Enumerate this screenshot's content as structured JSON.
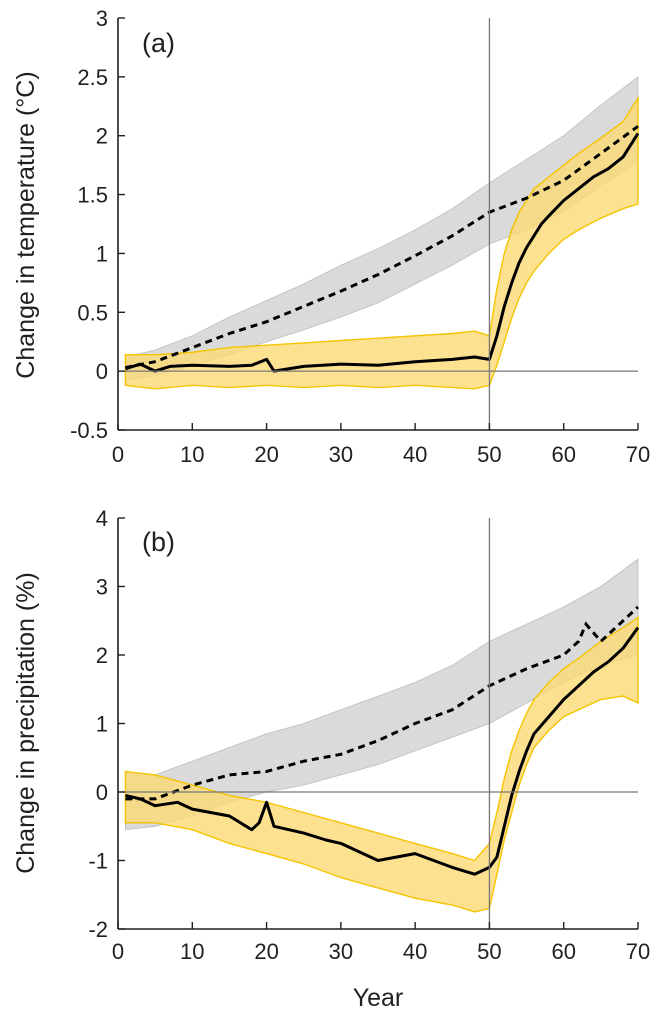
{
  "chart_data": [
    {
      "type": "line",
      "panel_label": "(a)",
      "xlabel": "",
      "ylabel": "Change in temperature (°C)",
      "xlim": [
        0,
        70
      ],
      "ylim": [
        -0.5,
        3
      ],
      "xticks": [
        "0",
        "10",
        "20",
        "30",
        "40",
        "50",
        "60",
        "70"
      ],
      "yticks": [
        "-0.5",
        "0",
        "0.5",
        "1",
        "1.5",
        "2",
        "2.5",
        "3"
      ],
      "xtick_values": [
        0,
        10,
        20,
        30,
        40,
        50,
        60,
        70
      ],
      "ytick_values": [
        -0.5,
        0,
        0.5,
        1,
        1.5,
        2,
        2.5,
        3
      ],
      "vline_x": 50,
      "hline_y": 0,
      "grid": false,
      "colors": {
        "gray_band": "#d4d4d4",
        "yellow_band": "#fbd976",
        "yellow_edge": "#f5c400",
        "line": "#000000"
      },
      "series": [
        {
          "style": "dashed",
          "x": [
            1,
            5,
            10,
            15,
            20,
            25,
            30,
            35,
            40,
            45,
            50,
            55,
            60,
            65,
            70
          ],
          "y": [
            0.03,
            0.08,
            0.2,
            0.32,
            0.42,
            0.55,
            0.68,
            0.82,
            0.98,
            1.15,
            1.35,
            1.47,
            1.62,
            1.85,
            2.08
          ]
        },
        {
          "style": "gray_band",
          "x": [
            1,
            5,
            10,
            15,
            20,
            25,
            30,
            35,
            40,
            45,
            50,
            55,
            60,
            65,
            70
          ],
          "lower": [
            -0.08,
            -0.04,
            0.05,
            0.14,
            0.25,
            0.35,
            0.46,
            0.58,
            0.74,
            0.9,
            1.08,
            1.2,
            1.36,
            1.58,
            1.78
          ],
          "upper": [
            0.12,
            0.18,
            0.3,
            0.46,
            0.6,
            0.74,
            0.9,
            1.04,
            1.2,
            1.38,
            1.6,
            1.8,
            2.0,
            2.26,
            2.5
          ]
        },
        {
          "style": "solid",
          "x": [
            1,
            3,
            5,
            7,
            10,
            15,
            18,
            20,
            21,
            25,
            30,
            35,
            40,
            45,
            48,
            50,
            51,
            52,
            53,
            54,
            55,
            56,
            57,
            58,
            60,
            62,
            64,
            66,
            68,
            70
          ],
          "y": [
            0.02,
            0.06,
            0.0,
            0.04,
            0.05,
            0.04,
            0.05,
            0.1,
            0.0,
            0.04,
            0.06,
            0.05,
            0.08,
            0.1,
            0.12,
            0.1,
            0.3,
            0.55,
            0.75,
            0.92,
            1.05,
            1.15,
            1.25,
            1.32,
            1.45,
            1.55,
            1.65,
            1.72,
            1.82,
            2.02
          ]
        },
        {
          "style": "yellow_band",
          "x": [
            1,
            5,
            10,
            15,
            20,
            25,
            30,
            35,
            40,
            45,
            48,
            50,
            51,
            52,
            53,
            54,
            55,
            56,
            58,
            60,
            62,
            65,
            68,
            70
          ],
          "lower": [
            -0.12,
            -0.15,
            -0.12,
            -0.14,
            -0.12,
            -0.14,
            -0.12,
            -0.14,
            -0.12,
            -0.14,
            -0.15,
            -0.12,
            0.05,
            0.25,
            0.45,
            0.62,
            0.75,
            0.85,
            1.0,
            1.12,
            1.2,
            1.3,
            1.38,
            1.42
          ],
          "upper": [
            0.14,
            0.14,
            0.16,
            0.2,
            0.22,
            0.24,
            0.26,
            0.28,
            0.3,
            0.32,
            0.34,
            0.3,
            0.7,
            1.0,
            1.2,
            1.35,
            1.45,
            1.55,
            1.65,
            1.75,
            1.85,
            1.98,
            2.12,
            2.32
          ]
        }
      ]
    },
    {
      "type": "line",
      "panel_label": "(b)",
      "xlabel": "Year",
      "ylabel": "Change in precipitation (%)",
      "xlim": [
        0,
        70
      ],
      "ylim": [
        -2,
        4
      ],
      "xticks": [
        "0",
        "10",
        "20",
        "30",
        "40",
        "50",
        "60",
        "70"
      ],
      "yticks": [
        "-2",
        "-1",
        "0",
        "1",
        "2",
        "3",
        "4"
      ],
      "xtick_values": [
        0,
        10,
        20,
        30,
        40,
        50,
        60,
        70
      ],
      "ytick_values": [
        -2,
        -1,
        0,
        1,
        2,
        3,
        4
      ],
      "vline_x": 50,
      "hline_y": 0,
      "grid": false,
      "colors": {
        "gray_band": "#d4d4d4",
        "yellow_band": "#fbd976",
        "yellow_edge": "#f5c400",
        "line": "#000000"
      },
      "series": [
        {
          "style": "dashed",
          "x": [
            1,
            5,
            10,
            15,
            20,
            25,
            30,
            35,
            40,
            45,
            50,
            55,
            60,
            62,
            63,
            65,
            70
          ],
          "y": [
            -0.1,
            -0.1,
            0.1,
            0.25,
            0.3,
            0.45,
            0.55,
            0.75,
            1.0,
            1.2,
            1.55,
            1.8,
            2.0,
            2.2,
            2.45,
            2.2,
            2.7
          ]
        },
        {
          "style": "gray_band",
          "x": [
            1,
            5,
            10,
            15,
            20,
            25,
            30,
            35,
            40,
            45,
            50,
            55,
            60,
            65,
            70
          ],
          "lower": [
            -0.55,
            -0.5,
            -0.35,
            -0.15,
            0.0,
            0.1,
            0.25,
            0.4,
            0.6,
            0.8,
            1.0,
            1.3,
            1.6,
            1.85,
            2.0
          ],
          "upper": [
            0.3,
            0.25,
            0.45,
            0.65,
            0.85,
            1.0,
            1.2,
            1.4,
            1.6,
            1.85,
            2.2,
            2.45,
            2.7,
            3.0,
            3.4
          ]
        },
        {
          "style": "solid",
          "x": [
            1,
            3,
            5,
            8,
            10,
            15,
            18,
            19,
            20,
            21,
            25,
            28,
            30,
            35,
            40,
            45,
            48,
            50,
            51,
            52,
            53,
            54,
            55,
            56,
            58,
            60,
            62,
            64,
            66,
            68,
            70
          ],
          "y": [
            -0.05,
            -0.1,
            -0.2,
            -0.15,
            -0.25,
            -0.35,
            -0.55,
            -0.45,
            -0.15,
            -0.5,
            -0.6,
            -0.7,
            -0.75,
            -1.0,
            -0.9,
            -1.1,
            -1.2,
            -1.1,
            -0.95,
            -0.5,
            -0.05,
            0.3,
            0.6,
            0.85,
            1.1,
            1.35,
            1.55,
            1.75,
            1.9,
            2.1,
            2.4
          ]
        },
        {
          "style": "yellow_band",
          "x": [
            1,
            5,
            10,
            15,
            20,
            25,
            30,
            35,
            40,
            45,
            48,
            50,
            51,
            52,
            53,
            54,
            55,
            56,
            58,
            60,
            62,
            65,
            68,
            70
          ],
          "lower": [
            -0.45,
            -0.45,
            -0.55,
            -0.75,
            -0.9,
            -1.05,
            -1.25,
            -1.4,
            -1.55,
            -1.65,
            -1.75,
            -1.7,
            -1.2,
            -0.7,
            -0.3,
            0.1,
            0.4,
            0.65,
            0.9,
            1.1,
            1.2,
            1.35,
            1.4,
            1.3
          ],
          "upper": [
            0.3,
            0.25,
            0.1,
            -0.05,
            -0.15,
            -0.3,
            -0.45,
            -0.6,
            -0.75,
            -0.9,
            -1.0,
            -0.75,
            -0.3,
            0.2,
            0.6,
            0.9,
            1.15,
            1.35,
            1.6,
            1.8,
            1.95,
            2.2,
            2.4,
            2.55
          ]
        }
      ]
    }
  ]
}
